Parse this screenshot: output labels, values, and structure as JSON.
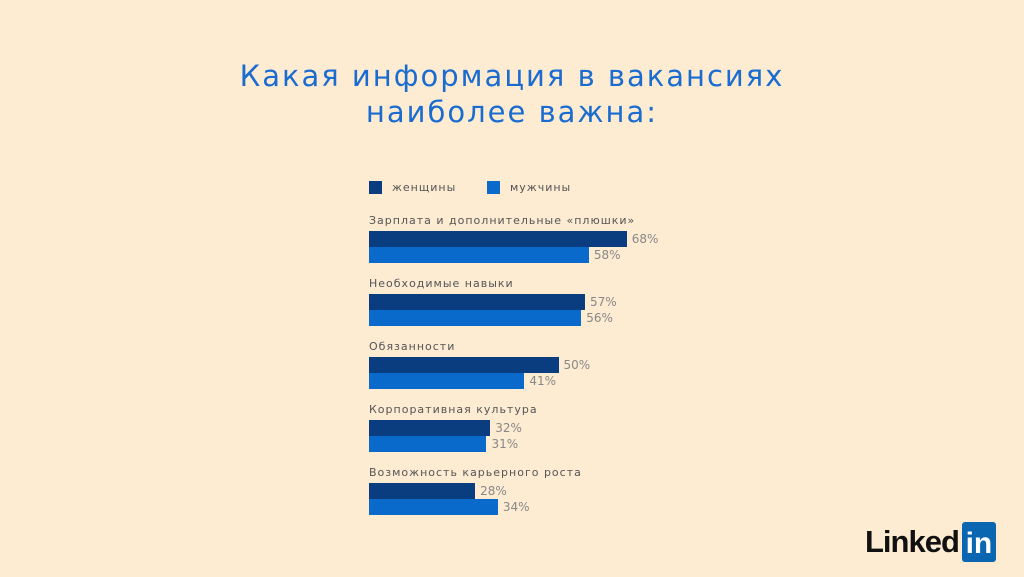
{
  "chart_data": {
    "type": "bar",
    "orientation": "horizontal",
    "title": "Какая информация в вакансиях наиболее важна:",
    "categories": [
      "Зарплата и дополнительные «плюшки»",
      "Необходимые навыки",
      "Обязанности",
      "Корпоративная культура",
      "Возможность карьерного роста"
    ],
    "series": [
      {
        "name": "женщины",
        "color": "#0a3d80",
        "values": [
          68,
          57,
          50,
          32,
          28
        ],
        "labels": [
          "68%",
          "57%",
          "50%",
          "32%",
          "28%"
        ]
      },
      {
        "name": "мужчины",
        "color": "#0a6acc",
        "values": [
          58,
          56,
          41,
          31,
          34
        ],
        "labels": [
          "58%",
          "56%",
          "41%",
          "31%",
          "34%"
        ]
      }
    ],
    "unit": "%",
    "legend": "top-left"
  },
  "title_lines": [
    "Какая информация в вакансиях",
    "наиболее важна:"
  ],
  "logo": {
    "text": "Linked",
    "badge": "in"
  }
}
